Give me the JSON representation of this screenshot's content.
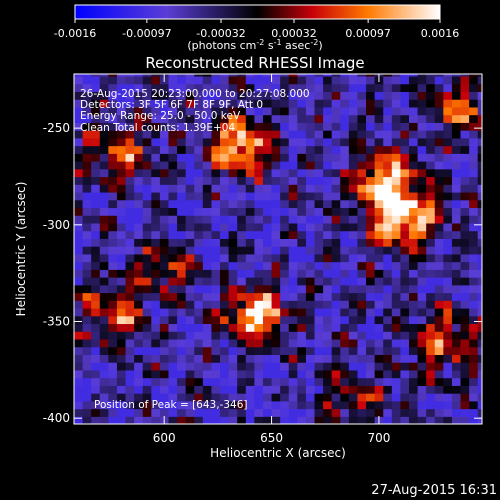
{
  "chart_data": {
    "type": "heatmap",
    "title": "Reconstructed RHESSI Image",
    "xlabel": "Heliocentric X (arcsec)",
    "ylabel": "Heliocentric Y (arcsec)",
    "xlim": [
      558,
      748
    ],
    "ylim": [
      -403,
      -222
    ],
    "x_ticks": [
      600,
      650,
      700
    ],
    "y_ticks": [
      -250,
      -300,
      -350,
      -400
    ],
    "colorbar": {
      "label": "(photons cm",
      "label_exp1": "-2",
      "label_mid": " s",
      "label_exp2": "-1",
      "label_mid2": " asec",
      "label_exp3": "-2",
      "label_end": ")",
      "ticks": [
        "-0.0016",
        "-0.00097",
        "-0.00032",
        "0.00032",
        "0.00097",
        "0.0016"
      ],
      "range": [
        -0.0016,
        0.0016
      ]
    },
    "annotations": [
      "26-Aug-2015 20:23:00.000 to 20:27:08.000",
      "Detectors: 3F 5F 6F 7F 8F 9F, Att 0",
      "Energy Range: 25.0 - 50.0 keV",
      "Clean     Total counts: 1.39E+04"
    ],
    "peak_label": "Position of Peak = [643,-346]",
    "peak": [
      643,
      -346
    ],
    "sources": [
      {
        "x": 643,
        "y": -346,
        "amp": 1.0,
        "sigma": 9
      },
      {
        "x": 710,
        "y": -295,
        "amp": 0.95,
        "sigma": 12
      },
      {
        "x": 702,
        "y": -275,
        "amp": 0.7,
        "sigma": 10
      },
      {
        "x": 636,
        "y": -258,
        "amp": 0.85,
        "sigma": 10
      },
      {
        "x": 580,
        "y": -262,
        "amp": 0.55,
        "sigma": 11
      },
      {
        "x": 578,
        "y": -345,
        "amp": 0.6,
        "sigma": 11
      },
      {
        "x": 600,
        "y": -322,
        "amp": 0.5,
        "sigma": 9
      },
      {
        "x": 730,
        "y": -360,
        "amp": 0.55,
        "sigma": 12
      },
      {
        "x": 738,
        "y": -240,
        "amp": 0.6,
        "sigma": 10
      },
      {
        "x": 690,
        "y": -390,
        "amp": 0.4,
        "sigma": 10
      }
    ]
  },
  "timestamp": "27-Aug-2015 16:31"
}
